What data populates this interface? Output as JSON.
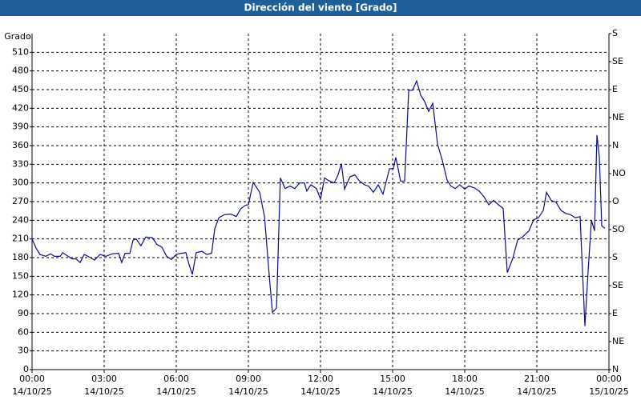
{
  "chart_data": {
    "type": "line",
    "title": "Dirección del viento [Grado]",
    "y_label": "Grado",
    "color": "#0c0c8a",
    "grid": true,
    "x": [
      0,
      0.17,
      0.33,
      0.57,
      0.77,
      0.93,
      1.17,
      1.27,
      1.5,
      1.67,
      1.83,
      2,
      2.17,
      2.33,
      2.6,
      2.83,
      3.07,
      3.33,
      3.6,
      3.73,
      3.87,
      4.07,
      4.2,
      4.33,
      4.53,
      4.73,
      5,
      5.2,
      5.4,
      5.6,
      5.8,
      6,
      6.2,
      6.4,
      6.53,
      6.67,
      6.83,
      7.07,
      7.27,
      7.47,
      7.6,
      7.77,
      8,
      8.27,
      8.5,
      8.67,
      8.87,
      9,
      9.2,
      9.47,
      9.67,
      9.87,
      10,
      10.17,
      10.33,
      10.53,
      10.73,
      10.93,
      11.13,
      11.33,
      11.43,
      11.6,
      11.83,
      12,
      12.17,
      12.33,
      12.57,
      12.73,
      12.87,
      13,
      13.23,
      13.43,
      13.6,
      13.83,
      14,
      14.2,
      14.4,
      14.6,
      14.87,
      15.03,
      15.13,
      15.23,
      15.33,
      15.5,
      15.67,
      15.83,
      16,
      16.17,
      16.33,
      16.5,
      16.67,
      16.87,
      17.07,
      17.27,
      17.43,
      17.6,
      17.8,
      18,
      18.17,
      18.4,
      18.6,
      18.8,
      19,
      19.2,
      19.4,
      19.6,
      19.77,
      20,
      20.2,
      20.4,
      20.67,
      20.87,
      21.07,
      21.27,
      21.4,
      21.6,
      21.8,
      22,
      22.2,
      22.4,
      22.6,
      22.8,
      23,
      23.13,
      23.27,
      23.4,
      23.5,
      23.6,
      23.7,
      23.83
    ],
    "values": [
      210,
      195,
      185,
      182,
      186,
      182,
      182,
      188,
      182,
      178,
      178,
      172,
      185,
      182,
      176,
      185,
      182,
      186,
      187,
      172,
      187,
      187,
      208,
      210,
      199,
      213,
      212,
      201,
      197,
      182,
      177,
      185,
      187,
      188,
      169,
      153,
      188,
      190,
      185,
      187,
      226,
      244,
      249,
      250,
      246,
      258,
      264,
      265,
      301,
      285,
      246,
      150,
      92,
      99,
      308,
      291,
      295,
      291,
      300,
      300,
      287,
      297,
      291,
      274,
      308,
      304,
      300,
      313,
      331,
      290,
      310,
      313,
      304,
      297,
      295,
      285,
      297,
      282,
      323,
      323,
      341,
      323,
      303,
      303,
      449,
      449,
      464,
      441,
      431,
      415,
      428,
      362,
      336,
      304,
      295,
      291,
      297,
      290,
      295,
      292,
      287,
      278,
      265,
      272,
      265,
      259,
      156,
      179,
      208,
      213,
      223,
      241,
      244,
      256,
      285,
      272,
      269,
      256,
      251,
      249,
      244,
      246,
      70,
      156,
      240,
      223,
      377,
      342,
      231,
      227
    ],
    "xlim": [
      0,
      24
    ],
    "xticks": [
      {
        "value": 0,
        "label": "00:00\n14/10/25"
      },
      {
        "value": 3,
        "label": "03:00\n14/10/25"
      },
      {
        "value": 6,
        "label": "06:00\n14/10/25"
      },
      {
        "value": 9,
        "label": "09:00\n14/10/25"
      },
      {
        "value": 12,
        "label": "12:00\n14/10/25"
      },
      {
        "value": 15,
        "label": "15:00\n14/10/25"
      },
      {
        "value": 18,
        "label": "18:00\n14/10/25"
      },
      {
        "value": 21,
        "label": "21:00\n14/10/25"
      },
      {
        "value": 24,
        "label": "00:00\n15/10/25"
      }
    ],
    "ylim": [
      0,
      540
    ],
    "yticks": [
      0,
      30,
      60,
      90,
      120,
      150,
      180,
      210,
      240,
      270,
      300,
      330,
      360,
      390,
      420,
      450,
      480,
      510
    ],
    "y2lim": [
      0,
      540
    ],
    "y2ticks": [
      {
        "value": 0,
        "label": "N"
      },
      {
        "value": 45,
        "label": "NE"
      },
      {
        "value": 90,
        "label": "E"
      },
      {
        "value": 135,
        "label": "SE"
      },
      {
        "value": 180,
        "label": "S"
      },
      {
        "value": 225,
        "label": "SO"
      },
      {
        "value": 270,
        "label": "O"
      },
      {
        "value": 315,
        "label": "NO"
      },
      {
        "value": 360,
        "label": "N"
      },
      {
        "value": 405,
        "label": "NE"
      },
      {
        "value": 450,
        "label": "E"
      },
      {
        "value": 495,
        "label": "SE"
      },
      {
        "value": 540,
        "label": "S"
      }
    ]
  }
}
